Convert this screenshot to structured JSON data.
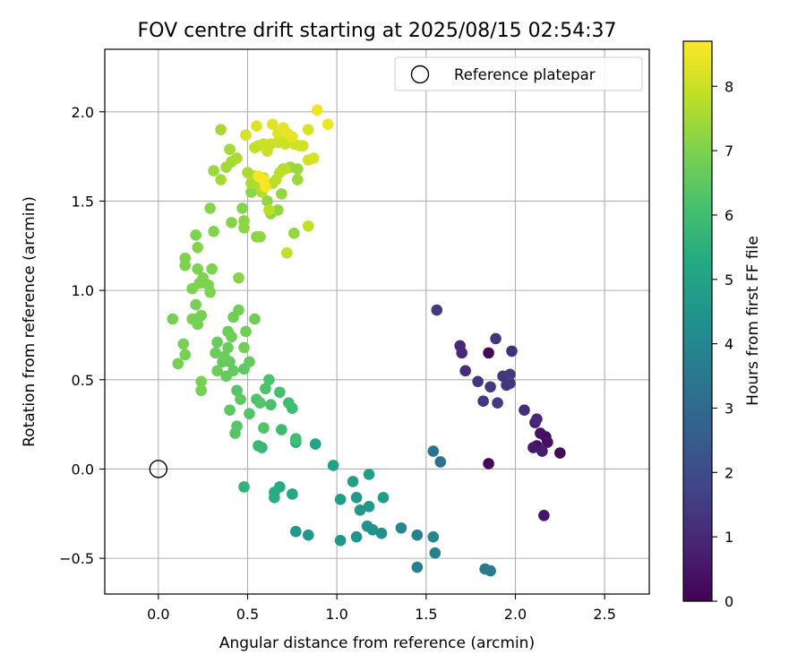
{
  "chart_data": {
    "type": "scatter",
    "title": "FOV centre drift starting at 2025/08/15 02:54:37",
    "xlabel": "Angular distance from reference (arcmin)",
    "ylabel": "Rotation from reference (arcmin)",
    "xlim": [
      -0.3,
      2.75
    ],
    "ylim": [
      -0.7,
      2.35
    ],
    "xticks": [
      0.0,
      0.5,
      1.0,
      1.5,
      2.0,
      2.5
    ],
    "xtick_labels": [
      "0.0",
      "0.5",
      "1.0",
      "1.5",
      "2.0",
      "2.5"
    ],
    "yticks": [
      -0.5,
      0.0,
      0.5,
      1.0,
      1.5,
      2.0
    ],
    "ytick_labels": [
      "−0.5",
      "0.0",
      "0.5",
      "1.0",
      "1.5",
      "2.0"
    ],
    "grid": true,
    "legend": {
      "placement": "top-right",
      "entries": [
        "Reference platepar"
      ]
    },
    "reference_point": {
      "x": 0.0,
      "y": 0.0
    },
    "colorbar": {
      "label": "Hours from first FF file",
      "colormap": "viridis",
      "range": [
        0,
        8.7
      ],
      "ticks": [
        0,
        1,
        2,
        3,
        4,
        5,
        6,
        7,
        8
      ],
      "tick_labels": [
        "0",
        "1",
        "2",
        "3",
        "4",
        "5",
        "6",
        "7",
        "8"
      ]
    },
    "series": [
      {
        "points": [
          [
            1.85,
            0.65,
            0.2
          ],
          [
            1.85,
            0.03,
            0.2
          ],
          [
            2.25,
            0.09,
            0.2
          ],
          [
            2.12,
            0.13,
            0.3
          ],
          [
            2.17,
            0.18,
            0.3
          ],
          [
            2.14,
            0.2,
            0.4
          ],
          [
            2.18,
            0.15,
            0.4
          ],
          [
            2.16,
            -0.26,
            0.5
          ],
          [
            2.1,
            0.12,
            0.6
          ],
          [
            2.15,
            0.1,
            0.7
          ],
          [
            2.11,
            0.26,
            0.8
          ],
          [
            2.05,
            0.33,
            1.1
          ],
          [
            2.12,
            0.28,
            1.0
          ],
          [
            1.98,
            0.66,
            1.2
          ],
          [
            1.89,
            0.73,
            1.3
          ],
          [
            1.95,
            0.47,
            1.3
          ],
          [
            1.93,
            0.52,
            1.3
          ],
          [
            1.97,
            0.48,
            1.4
          ],
          [
            1.97,
            0.53,
            1.5
          ],
          [
            1.9,
            0.37,
            1.5
          ],
          [
            1.86,
            0.46,
            1.5
          ],
          [
            1.82,
            0.38,
            1.4
          ],
          [
            1.79,
            0.49,
            1.3
          ],
          [
            1.72,
            0.55,
            1.1
          ],
          [
            1.69,
            0.69,
            1.0
          ],
          [
            1.7,
            0.65,
            1.0
          ],
          [
            1.56,
            0.89,
            1.5
          ],
          [
            1.54,
            0.1,
            3.3
          ],
          [
            1.58,
            0.04,
            3.3
          ],
          [
            1.86,
            -0.57,
            3.5
          ],
          [
            1.83,
            -0.56,
            3.5
          ],
          [
            1.55,
            -0.47,
            3.8
          ],
          [
            1.45,
            -0.55,
            3.8
          ],
          [
            1.45,
            -0.37,
            3.8
          ],
          [
            1.54,
            -0.38,
            4.0
          ],
          [
            1.36,
            -0.33,
            4.0
          ],
          [
            1.25,
            -0.36,
            4.3
          ],
          [
            1.17,
            -0.32,
            4.4
          ],
          [
            1.2,
            -0.34,
            4.4
          ],
          [
            1.11,
            -0.38,
            4.5
          ],
          [
            1.02,
            -0.4,
            4.5
          ],
          [
            0.84,
            -0.37,
            4.6
          ],
          [
            0.77,
            -0.35,
            4.7
          ],
          [
            1.11,
            -0.16,
            4.7
          ],
          [
            1.13,
            -0.23,
            4.6
          ],
          [
            1.18,
            -0.21,
            4.6
          ],
          [
            1.26,
            -0.16,
            4.8
          ],
          [
            1.02,
            -0.17,
            4.8
          ],
          [
            1.09,
            -0.07,
            4.9
          ],
          [
            1.18,
            -0.03,
            4.9
          ],
          [
            0.98,
            0.02,
            5.0
          ],
          [
            0.88,
            0.14,
            5.0
          ],
          [
            0.77,
            0.15,
            5.1
          ],
          [
            0.75,
            -0.14,
            5.2
          ],
          [
            0.68,
            -0.1,
            5.3
          ],
          [
            0.65,
            -0.13,
            5.4
          ],
          [
            0.65,
            -0.16,
            5.4
          ],
          [
            0.48,
            -0.1,
            5.6
          ],
          [
            0.58,
            0.12,
            5.8
          ],
          [
            0.56,
            0.13,
            5.8
          ],
          [
            0.69,
            0.22,
            5.9
          ],
          [
            0.77,
            0.16,
            5.9
          ],
          [
            0.77,
            0.17,
            6.0
          ],
          [
            0.73,
            0.37,
            6.0
          ],
          [
            0.75,
            0.34,
            6.0
          ],
          [
            0.68,
            0.43,
            6.1
          ],
          [
            0.63,
            0.36,
            6.2
          ],
          [
            0.62,
            0.5,
            6.2
          ],
          [
            0.6,
            0.45,
            6.2
          ],
          [
            0.55,
            0.39,
            6.3
          ],
          [
            0.57,
            0.37,
            6.3
          ],
          [
            0.51,
            0.31,
            6.3
          ],
          [
            0.59,
            0.23,
            6.3
          ],
          [
            0.44,
            0.24,
            6.4
          ],
          [
            0.43,
            0.2,
            6.4
          ],
          [
            0.44,
            0.44,
            6.4
          ],
          [
            0.4,
            0.33,
            6.5
          ],
          [
            0.46,
            0.39,
            6.5
          ],
          [
            0.48,
            0.56,
            6.5
          ],
          [
            0.51,
            0.6,
            6.6
          ],
          [
            0.42,
            0.55,
            6.6
          ],
          [
            0.4,
            0.6,
            6.6
          ],
          [
            0.38,
            0.52,
            6.6
          ],
          [
            0.36,
            0.6,
            6.6
          ],
          [
            0.33,
            0.55,
            6.7
          ],
          [
            0.37,
            0.63,
            6.7
          ],
          [
            0.33,
            0.71,
            6.7
          ],
          [
            0.32,
            0.65,
            6.7
          ],
          [
            0.39,
            0.68,
            6.7
          ],
          [
            0.39,
            0.77,
            6.7
          ],
          [
            0.41,
            0.74,
            6.8
          ],
          [
            0.48,
            0.68,
            6.8
          ],
          [
            0.49,
            0.77,
            6.8
          ],
          [
            0.42,
            0.85,
            6.8
          ],
          [
            0.45,
            0.89,
            6.8
          ],
          [
            0.54,
            0.84,
            6.8
          ],
          [
            0.24,
            0.49,
            6.9
          ],
          [
            0.24,
            0.44,
            6.9
          ],
          [
            0.11,
            0.59,
            6.9
          ],
          [
            0.15,
            0.64,
            6.9
          ],
          [
            0.14,
            0.7,
            6.9
          ],
          [
            0.21,
            0.84,
            6.9
          ],
          [
            0.19,
            0.84,
            6.9
          ],
          [
            0.22,
            0.81,
            6.9
          ],
          [
            0.24,
            0.86,
            6.9
          ],
          [
            0.21,
            0.92,
            6.9
          ],
          [
            0.08,
            0.84,
            6.9
          ],
          [
            0.19,
            1.01,
            7.0
          ],
          [
            0.23,
            1.04,
            7.0
          ],
          [
            0.28,
            1.03,
            7.0
          ],
          [
            0.29,
            0.99,
            7.0
          ],
          [
            0.25,
            1.07,
            7.0
          ],
          [
            0.3,
            1.12,
            7.0
          ],
          [
            0.15,
            1.14,
            7.0
          ],
          [
            0.15,
            1.18,
            7.0
          ],
          [
            0.22,
            1.12,
            7.0
          ],
          [
            0.21,
            1.31,
            7.0
          ],
          [
            0.22,
            1.24,
            7.1
          ],
          [
            0.31,
            1.33,
            7.1
          ],
          [
            0.45,
            1.07,
            7.1
          ],
          [
            0.29,
            1.46,
            7.1
          ],
          [
            0.41,
            1.38,
            7.1
          ],
          [
            0.47,
            1.46,
            7.1
          ],
          [
            0.48,
            1.39,
            7.2
          ],
          [
            0.48,
            1.35,
            7.2
          ],
          [
            0.55,
            1.3,
            7.2
          ],
          [
            0.57,
            1.3,
            7.2
          ],
          [
            0.52,
            1.55,
            7.2
          ],
          [
            0.61,
            1.5,
            7.3
          ],
          [
            0.63,
            1.43,
            7.3
          ],
          [
            0.67,
            1.45,
            7.3
          ],
          [
            0.69,
            1.54,
            7.3
          ],
          [
            0.76,
            1.32,
            7.3
          ],
          [
            0.78,
            1.62,
            7.4
          ],
          [
            0.78,
            1.68,
            7.4
          ],
          [
            0.74,
            1.69,
            7.4
          ],
          [
            0.7,
            1.68,
            7.4
          ],
          [
            0.31,
            1.67,
            7.4
          ],
          [
            0.35,
            1.62,
            7.5
          ],
          [
            0.35,
            1.9,
            7.5
          ],
          [
            0.38,
            1.69,
            7.5
          ],
          [
            0.4,
            1.79,
            7.5
          ],
          [
            0.41,
            1.72,
            7.5
          ],
          [
            0.44,
            1.74,
            7.6
          ],
          [
            0.5,
            1.66,
            7.6
          ],
          [
            0.52,
            1.6,
            7.6
          ],
          [
            0.54,
            1.64,
            7.6
          ],
          [
            0.57,
            1.58,
            7.7
          ],
          [
            0.58,
            1.55,
            7.7
          ],
          [
            0.59,
            1.63,
            7.7
          ],
          [
            0.64,
            1.6,
            7.7
          ],
          [
            0.62,
            1.45,
            7.8
          ],
          [
            0.66,
            1.62,
            7.8
          ],
          [
            0.68,
            1.66,
            7.8
          ],
          [
            0.71,
            1.68,
            7.8
          ],
          [
            0.72,
            1.21,
            7.9
          ],
          [
            0.84,
            1.36,
            7.9
          ],
          [
            0.56,
            1.81,
            7.9
          ],
          [
            0.54,
            1.8,
            7.9
          ],
          [
            0.59,
            1.82,
            8.0
          ],
          [
            0.61,
            1.78,
            8.0
          ],
          [
            0.63,
            1.82,
            8.0
          ],
          [
            0.67,
            1.83,
            8.0
          ],
          [
            0.68,
            1.87,
            8.0
          ],
          [
            0.7,
            1.86,
            8.0
          ],
          [
            0.71,
            1.82,
            8.0
          ],
          [
            0.73,
            1.84,
            8.0
          ],
          [
            0.74,
            1.84,
            8.0
          ],
          [
            0.76,
            1.82,
            8.1
          ],
          [
            0.79,
            1.81,
            8.1
          ],
          [
            0.81,
            1.81,
            8.1
          ],
          [
            0.84,
            1.73,
            8.1
          ],
          [
            0.87,
            1.74,
            8.2
          ],
          [
            0.84,
            1.9,
            8.2
          ],
          [
            0.49,
            1.87,
            8.2
          ],
          [
            0.55,
            1.92,
            8.3
          ],
          [
            0.64,
            1.93,
            8.3
          ],
          [
            0.67,
            1.88,
            8.3
          ],
          [
            0.7,
            1.91,
            8.4
          ],
          [
            0.72,
            1.88,
            8.4
          ],
          [
            0.75,
            1.86,
            8.4
          ],
          [
            0.89,
            2.01,
            8.5
          ],
          [
            0.95,
            1.93,
            8.5
          ],
          [
            0.56,
            1.64,
            8.6
          ],
          [
            0.59,
            1.62,
            8.6
          ],
          [
            0.6,
            1.58,
            8.6
          ]
        ]
      }
    ]
  }
}
